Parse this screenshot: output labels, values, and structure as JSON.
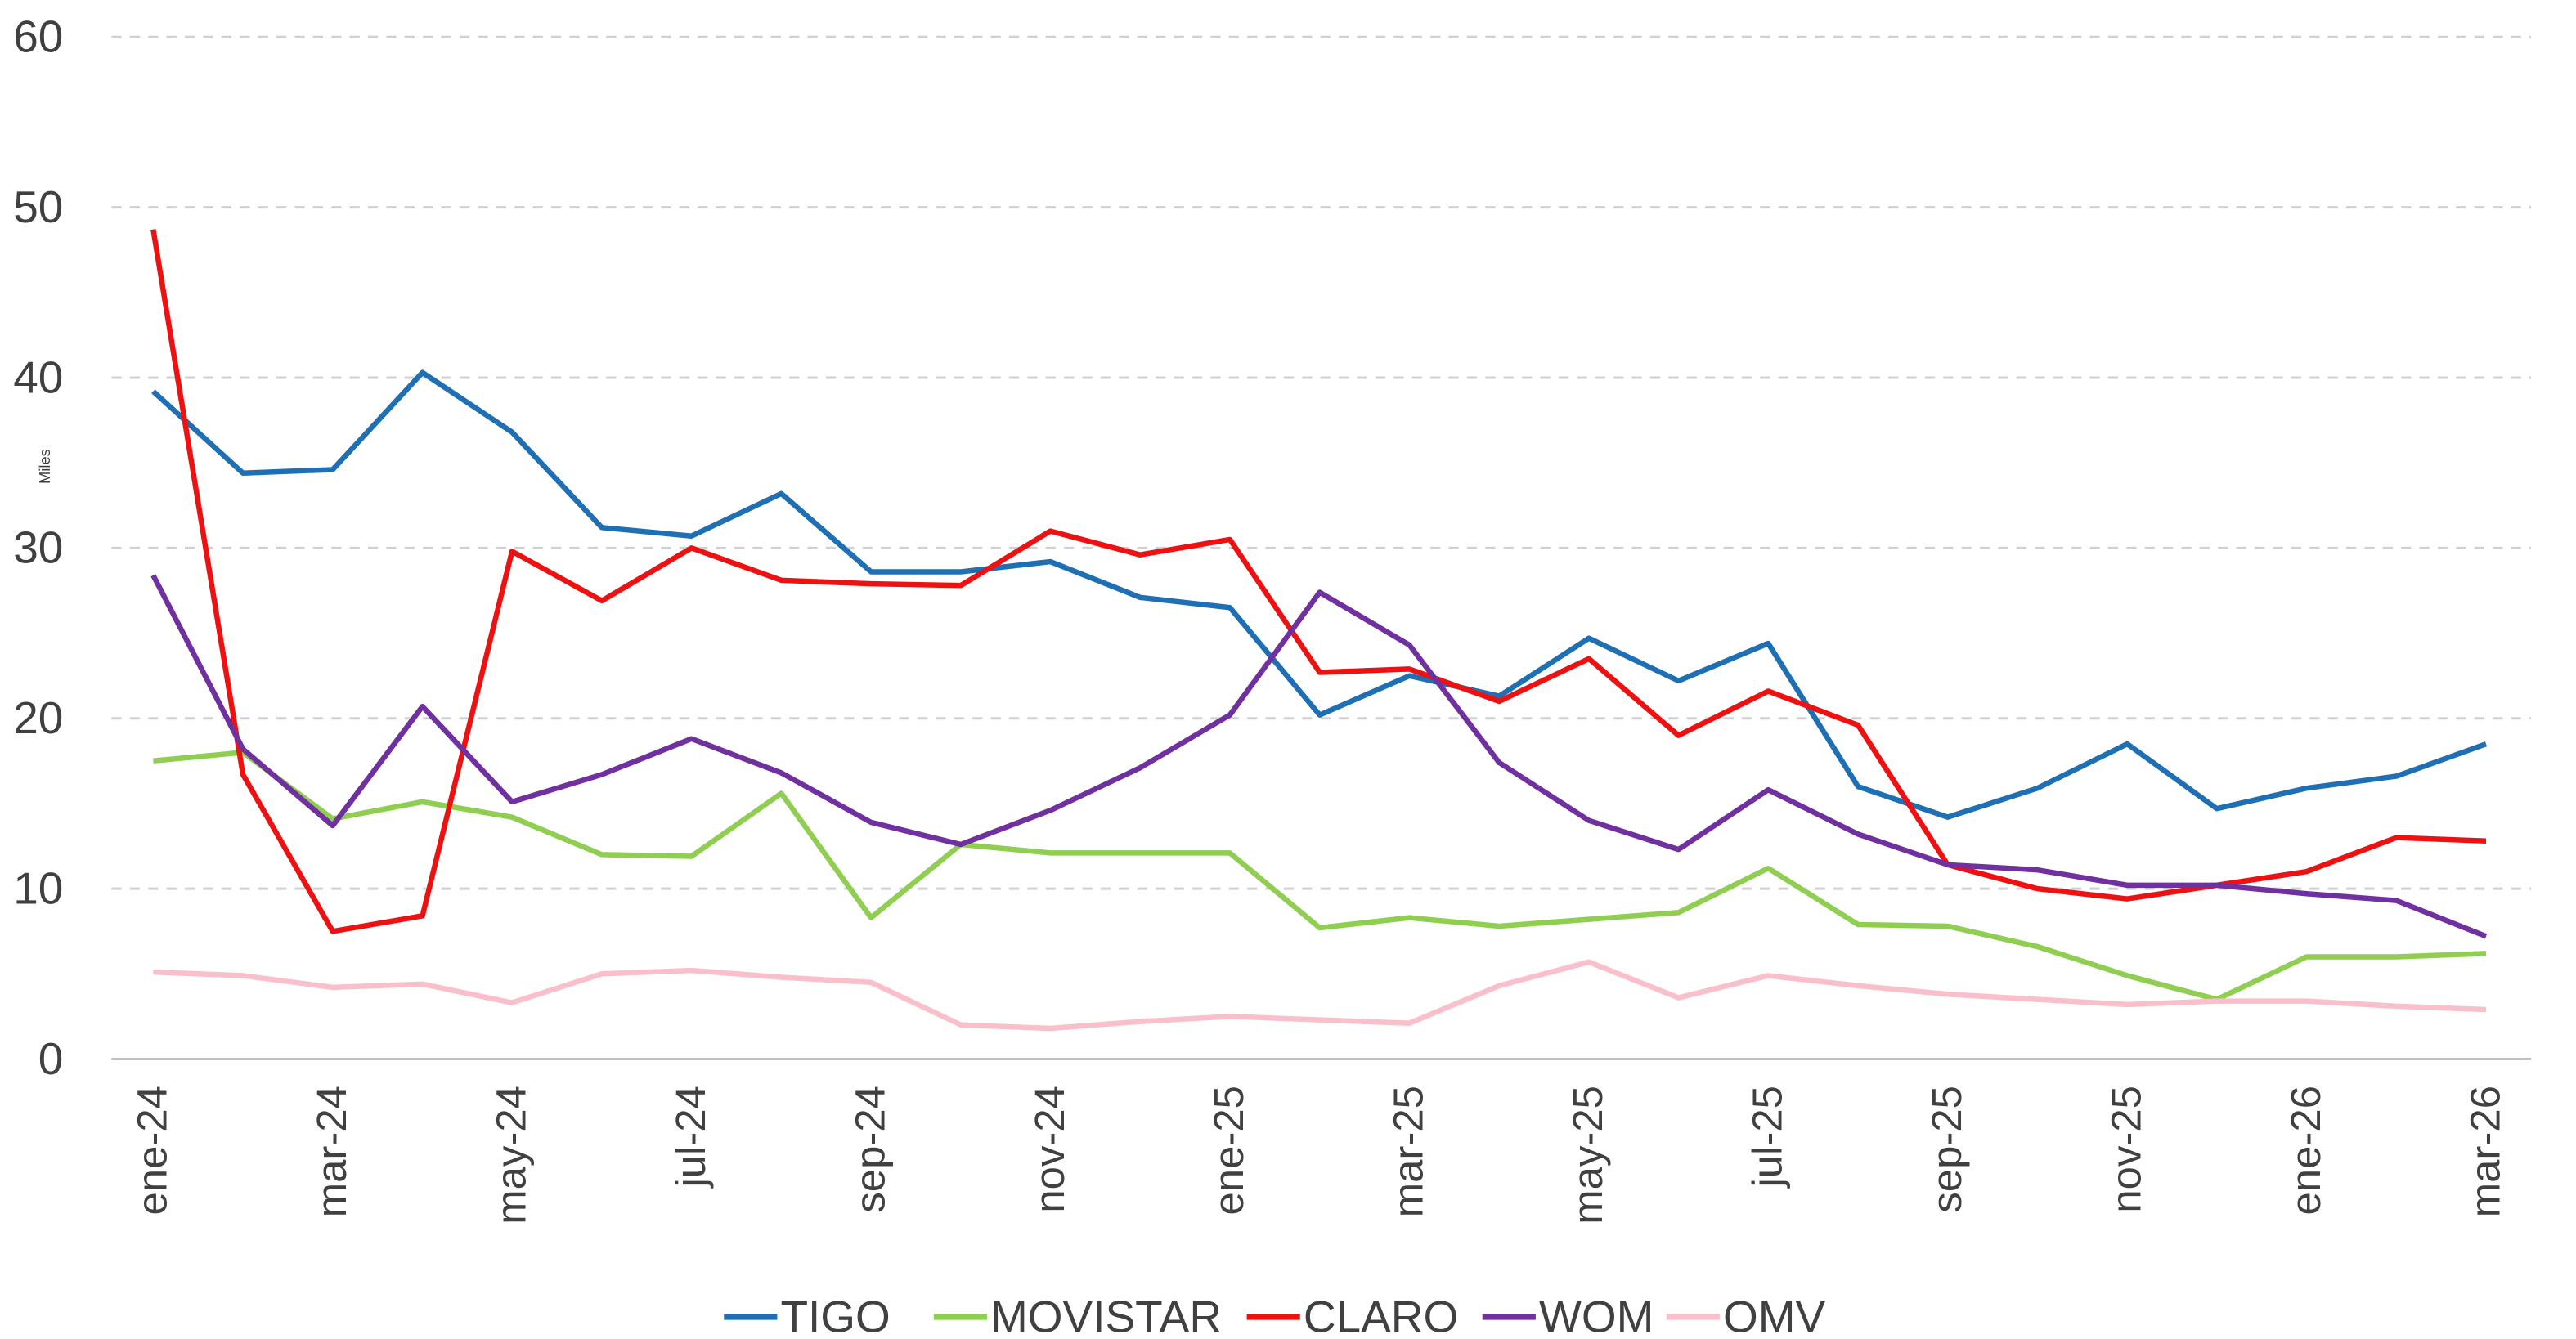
{
  "chart_data": {
    "type": "line",
    "y_label": "Miles",
    "categories": [
      "ene-24",
      null,
      "mar-24",
      null,
      "may-24",
      null,
      "jul-24",
      null,
      "sep-24",
      null,
      "nov-24",
      null,
      "ene-25",
      null,
      "mar-25",
      null,
      "may-25",
      null,
      "jul-25",
      null,
      "sep-25",
      null,
      "nov-25",
      null,
      "ene-26",
      null,
      "mar-26"
    ],
    "ylim": [
      0,
      60
    ],
    "yticks": [
      0,
      10,
      20,
      30,
      40,
      50,
      60
    ],
    "grid": true,
    "legend": "bottom",
    "series": [
      {
        "name": "TIGO",
        "color": "#1f6fb4",
        "values": [
          39.2,
          34.4,
          34.6,
          40.3,
          36.8,
          31.2,
          30.7,
          33.2,
          28.6,
          28.6,
          29.2,
          27.1,
          26.5,
          20.2,
          22.5,
          21.3,
          24.7,
          22.2,
          24.4,
          16.0,
          14.2,
          15.9,
          18.5,
          14.7,
          15.9,
          16.6,
          18.5
        ]
      },
      {
        "name": "MOVISTAR",
        "color": "#8fce50",
        "values": [
          17.5,
          18.0,
          14.1,
          15.1,
          14.2,
          12.0,
          11.9,
          15.6,
          8.3,
          12.6,
          12.1,
          12.1,
          12.1,
          7.7,
          8.3,
          7.8,
          8.2,
          8.6,
          11.2,
          7.9,
          7.8,
          6.6,
          4.9,
          3.5,
          6.0,
          6.0,
          6.2
        ]
      },
      {
        "name": "CLARO",
        "color": "#ee1111",
        "values": [
          48.7,
          16.7,
          7.5,
          8.4,
          29.8,
          26.9,
          30.0,
          28.1,
          27.9,
          27.8,
          31.0,
          29.6,
          30.5,
          22.7,
          22.9,
          21.0,
          23.5,
          19.0,
          21.6,
          19.6,
          11.4,
          10.0,
          9.4,
          10.2,
          11.0,
          13.0,
          12.8
        ]
      },
      {
        "name": "WOM",
        "color": "#7030a0",
        "values": [
          28.4,
          18.2,
          13.7,
          20.7,
          15.1,
          16.7,
          18.8,
          16.8,
          13.9,
          12.6,
          14.6,
          17.1,
          20.2,
          27.4,
          24.3,
          17.4,
          14.0,
          12.3,
          15.8,
          13.2,
          11.4,
          11.1,
          10.2,
          10.2,
          9.7,
          9.3,
          7.2
        ]
      },
      {
        "name": "OMV",
        "color": "#f9c0cb",
        "values": [
          5.1,
          4.9,
          4.2,
          4.4,
          3.3,
          5.0,
          5.2,
          4.8,
          4.5,
          2.0,
          1.8,
          2.2,
          2.5,
          2.3,
          2.1,
          4.3,
          5.7,
          3.6,
          4.9,
          4.3,
          3.8,
          3.5,
          3.2,
          3.4,
          3.4,
          3.1,
          2.9
        ]
      }
    ]
  }
}
